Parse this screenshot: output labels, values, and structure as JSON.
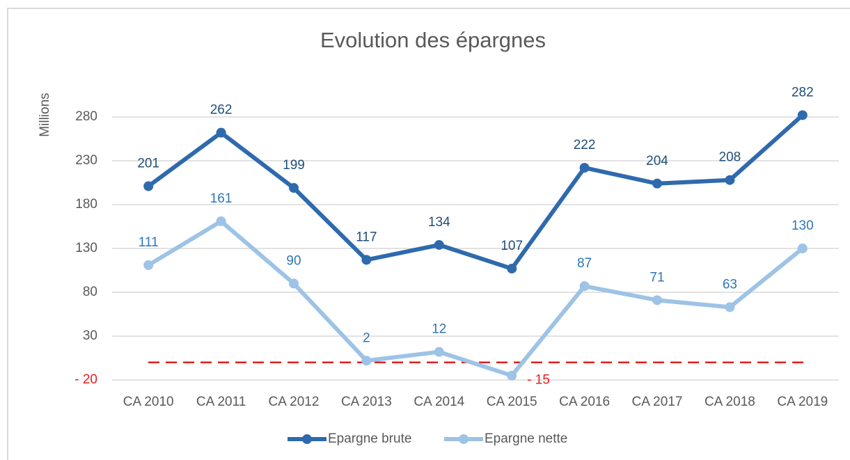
{
  "chart_data": {
    "type": "line",
    "title": "Evolution des épargnes",
    "y_label": "Millions",
    "categories": [
      "CA 2010",
      "CA 2011",
      "CA 2012",
      "CA 2013",
      "CA 2014",
      "CA 2015",
      "CA 2016",
      "CA 2017",
      "CA 2018",
      "CA 2019"
    ],
    "series": [
      {
        "name": "Epargne brute",
        "color": "#2e6aad",
        "values": [
          201,
          262,
          199,
          117,
          134,
          107,
          222,
          204,
          208,
          282
        ]
      },
      {
        "name": "Epargne nette",
        "color": "#9dc3e6",
        "values": [
          111,
          161,
          90,
          2,
          12,
          -15,
          87,
          71,
          63,
          130
        ],
        "value_labels": [
          "111",
          "161",
          "90",
          "2",
          "12",
          "- 15",
          "87",
          "71",
          "63",
          "130"
        ]
      }
    ],
    "ylim": [
      -20,
      300
    ],
    "yticks": [
      {
        "value": -20,
        "label": "- 20"
      },
      30,
      80,
      130,
      180,
      230,
      280
    ],
    "grid": true,
    "reference_line": {
      "value": 0,
      "color": "#e02020"
    },
    "legend": "bottom"
  }
}
